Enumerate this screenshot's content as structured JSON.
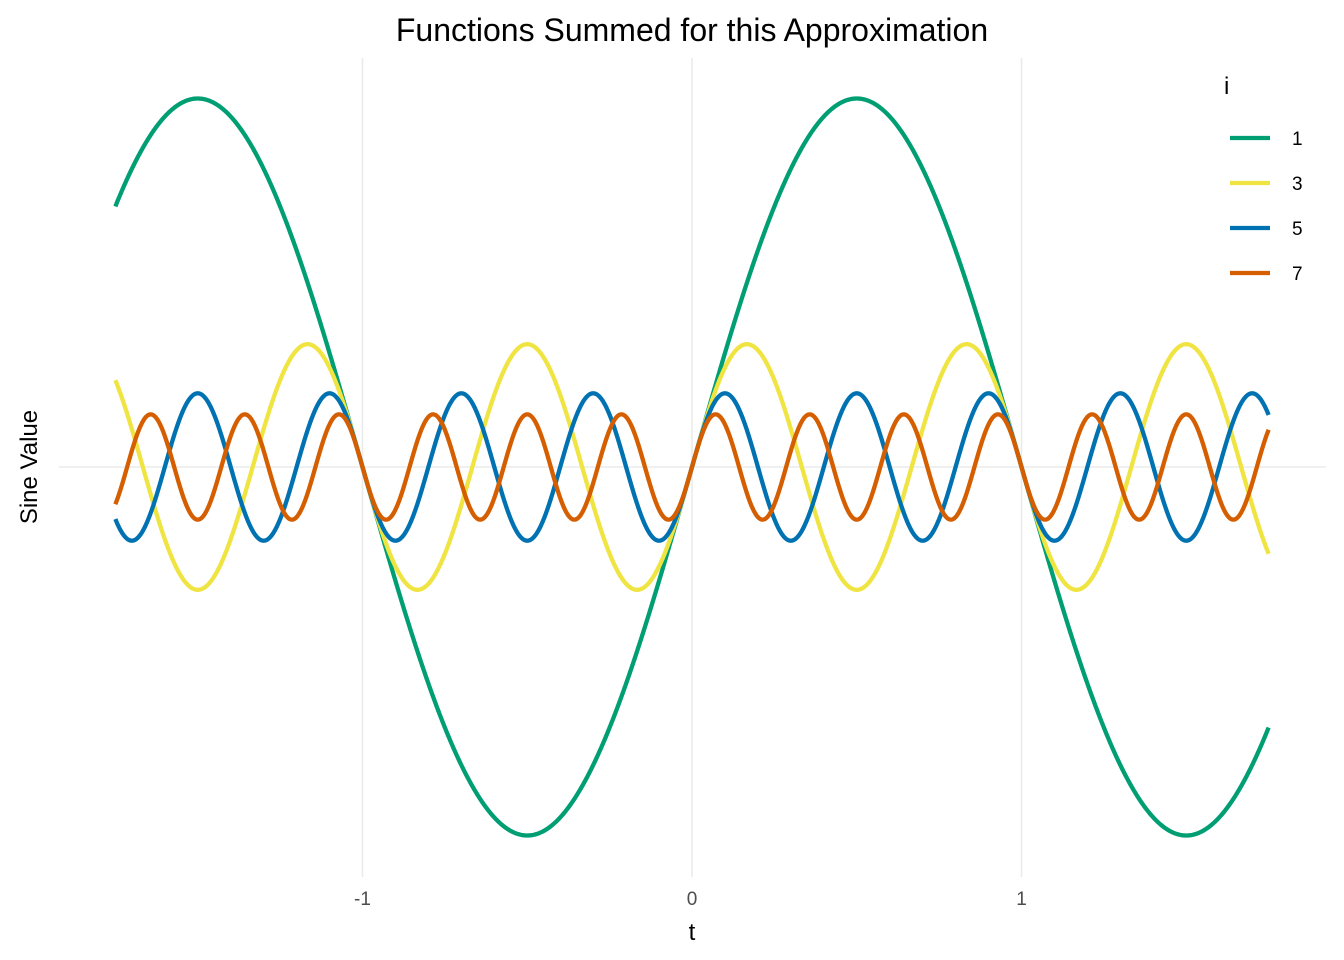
{
  "chart_data": {
    "type": "line",
    "title": "Functions Summed for this Approximation",
    "xlabel": "t",
    "ylabel": "Sine Value",
    "xlim": [
      -1.75,
      1.75
    ],
    "ylim": [
      -1.15,
      1.15
    ],
    "x_ticks": [
      -1,
      0,
      1
    ],
    "x_tick_labels": [
      "-1",
      "0",
      "1"
    ],
    "y_ticks": [],
    "grid": "major x and y at 0 only",
    "legend": {
      "title": "i",
      "placement": "right-top",
      "entries": [
        "1",
        "3",
        "5",
        "7"
      ]
    },
    "series_formula": "y = sin(i * pi * t) / i",
    "x_range": [
      -1.75,
      1.75
    ],
    "series": [
      {
        "name": "1",
        "i": 1,
        "color": "#009E73",
        "amplitude": 1.0
      },
      {
        "name": "3",
        "i": 3,
        "color": "#F0E442",
        "amplitude": 0.3333
      },
      {
        "name": "5",
        "i": 5,
        "color": "#0072B2",
        "amplitude": 0.2
      },
      {
        "name": "7",
        "i": 7,
        "color": "#D55E00",
        "amplitude": 0.1429
      }
    ]
  }
}
